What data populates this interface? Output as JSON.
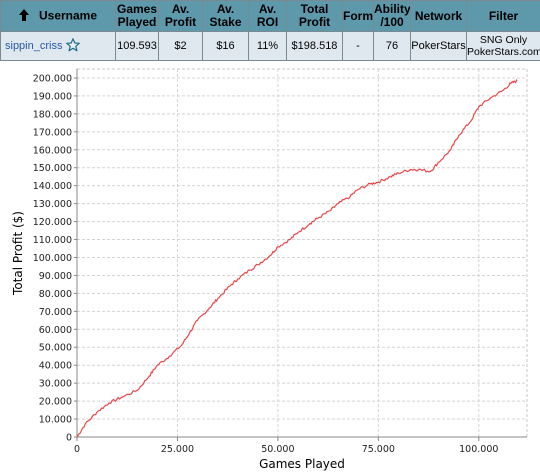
{
  "table": {
    "headers": {
      "username": "Username",
      "games_played_1": "Games",
      "games_played_2": "Played",
      "av_profit_1": "Av.",
      "av_profit_2": "Profit",
      "av_stake_1": "Av.",
      "av_stake_2": "Stake",
      "av_roi_1": "Av.",
      "av_roi_2": "ROI",
      "total_profit_1": "Total",
      "total_profit_2": "Profit",
      "form": "Form",
      "ability_1": "Ability",
      "ability_2": "/100",
      "network": "Network",
      "filter": "Filter"
    },
    "row": {
      "username": "sippin_criss",
      "games_played": "109.593",
      "av_profit": "$2",
      "av_stake": "$16",
      "av_roi": "11%",
      "total_profit": "$198.518",
      "form": "-",
      "ability": "76",
      "network": "PokerStars",
      "filter_1": "SNG Only",
      "filter_2": "PokerStars.com"
    },
    "icons": {
      "sort": "sort-up-arrow-icon",
      "favorite": "star-outline-icon"
    },
    "colors": {
      "header_bg": "#5e98ab",
      "row_bg": "#dfe8ee",
      "link": "#2459a8"
    }
  },
  "chart_data": {
    "type": "line",
    "xlabel": "Games Played",
    "ylabel": "Total Profit ($)",
    "xlim": [
      0,
      112000
    ],
    "ylim": [
      0,
      205000
    ],
    "xticks": [
      0,
      25000,
      50000,
      75000,
      100000
    ],
    "xtick_labels": [
      "0",
      "25.000",
      "50.000",
      "75.000",
      "100.000"
    ],
    "yticks": [
      0,
      10000,
      20000,
      30000,
      40000,
      50000,
      60000,
      70000,
      80000,
      90000,
      100000,
      110000,
      120000,
      130000,
      140000,
      150000,
      160000,
      170000,
      180000,
      190000,
      200000
    ],
    "ytick_labels": [
      "0",
      "10.000",
      "20.000",
      "30.000",
      "40.000",
      "50.000",
      "60.000",
      "70.000",
      "80.000",
      "90.000",
      "100.000",
      "110.000",
      "120.000",
      "130.000",
      "140.000",
      "150.000",
      "160.000",
      "170.000",
      "180.000",
      "190.000",
      "200.000"
    ],
    "grid": true,
    "line_color": "#e8474a",
    "series": [
      {
        "x": [
          0,
          2000,
          5000,
          8000,
          11000,
          15000,
          18000,
          20000,
          23000,
          26000,
          28000,
          30000,
          33000,
          35000,
          38000,
          40000,
          43000,
          45000,
          48000,
          50000,
          53000,
          55000,
          58000,
          60000,
          63000,
          65000,
          68000,
          70000,
          73000,
          75000,
          78000,
          80000,
          83000,
          85000,
          88000,
          90000,
          93000,
          95000,
          98000,
          100000,
          103000,
          106000,
          108000,
          109593
        ],
        "y": [
          0,
          7000,
          14000,
          19000,
          22000,
          26000,
          34000,
          40000,
          45000,
          51000,
          58000,
          65000,
          72000,
          77000,
          84000,
          88000,
          93000,
          96000,
          101000,
          106000,
          110000,
          114000,
          119000,
          122000,
          126000,
          130000,
          134000,
          138000,
          141000,
          142000,
          145000,
          147000,
          149000,
          149000,
          148000,
          153000,
          160000,
          168000,
          176000,
          184000,
          189000,
          193000,
          197000,
          198518
        ]
      }
    ]
  }
}
